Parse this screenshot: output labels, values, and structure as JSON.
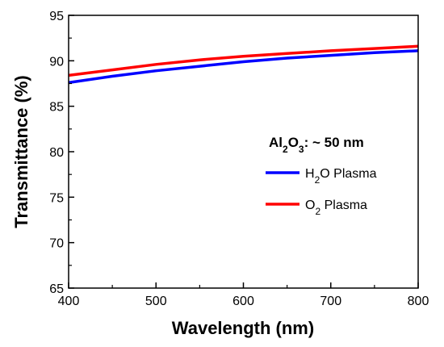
{
  "chart_data": {
    "type": "line",
    "title": "",
    "xlabel": "Wavelength (nm)",
    "ylabel": "Transmittance (%)",
    "xlim": [
      400,
      800
    ],
    "ylim": [
      65,
      95
    ],
    "x_ticks": [
      "400",
      "500",
      "600",
      "700",
      "800"
    ],
    "y_ticks": [
      "65",
      "70",
      "75",
      "80",
      "85",
      "90",
      "95"
    ],
    "grid": false,
    "legend_position": "right",
    "annotation": {
      "parts": [
        {
          "text": "Al",
          "sub": false
        },
        {
          "text": "2",
          "sub": true
        },
        {
          "text": "O",
          "sub": false
        },
        {
          "text": "3",
          "sub": true
        },
        {
          "text": ": ~ 50 nm",
          "sub": false
        }
      ]
    },
    "series": [
      {
        "name": "H2O Plasma",
        "label_parts": [
          {
            "text": "H",
            "sub": false
          },
          {
            "text": "2",
            "sub": true
          },
          {
            "text": "O Plasma",
            "sub": false
          }
        ],
        "color": "#0000ff",
        "x": [
          400,
          450,
          500,
          550,
          600,
          650,
          700,
          750,
          800
        ],
        "y": [
          87.6,
          88.3,
          88.9,
          89.4,
          89.9,
          90.3,
          90.6,
          90.9,
          91.1
        ]
      },
      {
        "name": "O2 Plasma",
        "label_parts": [
          {
            "text": "O",
            "sub": false
          },
          {
            "text": "2",
            "sub": true
          },
          {
            "text": " Plasma",
            "sub": false
          }
        ],
        "color": "#ff0000",
        "x": [
          400,
          450,
          500,
          550,
          600,
          650,
          700,
          750,
          800
        ],
        "y": [
          88.4,
          89.0,
          89.6,
          90.1,
          90.5,
          90.8,
          91.1,
          91.35,
          91.6
        ]
      }
    ]
  }
}
